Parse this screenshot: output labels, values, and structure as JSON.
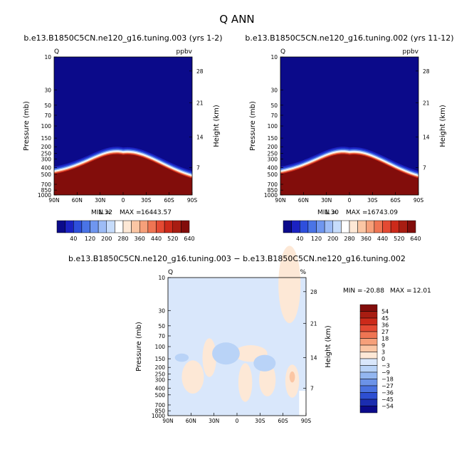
{
  "figure": {
    "title": "Q ANN"
  },
  "colors": {
    "cbar_top": [
      "#0b0a8a",
      "#1b22c2",
      "#2e4fdc",
      "#4a74e6",
      "#6f96ef",
      "#9dbcf6",
      "#c6dcfb",
      "#ffffff",
      "#fde8d6",
      "#fbc6a4",
      "#f6a07a",
      "#ef7553",
      "#e44a33",
      "#cc2a1a",
      "#a81d12",
      "#820d0b"
    ],
    "cbar_diff": [
      "#820d0b",
      "#a81d12",
      "#cc2a1a",
      "#e44a33",
      "#ef7553",
      "#f6a07a",
      "#fbc6a4",
      "#fde8d6",
      "#d9e7fb",
      "#b9d3f7",
      "#93b6f0",
      "#6c93e8",
      "#4a72e0",
      "#2e4fd2",
      "#1b2db0",
      "#0b0a8a"
    ]
  },
  "chart_data": [
    {
      "type": "heatmap",
      "title": "b.e13.B1850C5CN.ne120_g16.tuning.003 (yrs 1-2)",
      "corner_left": "Q",
      "corner_right": "ppbv",
      "ylabel": "Pressure (mb)",
      "ylabel_right": "Height (km)",
      "x_ticks": [
        "90N",
        "60N",
        "30N",
        "0",
        "30S",
        "60S",
        "90S"
      ],
      "y_ticks": [
        "10",
        "30",
        "50",
        "70",
        "100",
        "150",
        "200",
        "250",
        "300",
        "400",
        "500",
        "700",
        "850",
        "1000"
      ],
      "y_ticks_right": [
        "28",
        "21",
        "14",
        "7"
      ],
      "stats": {
        "min_label": "MIN =",
        "min": "1.32",
        "max_label": "MAX =",
        "max": "16443.57"
      },
      "colorbar_labels": [
        "40",
        "120",
        "200",
        "280",
        "360",
        "440",
        "520",
        "640"
      ]
    },
    {
      "type": "heatmap",
      "title": "b.e13.B1850C5CN.ne120_g16.tuning.002 (yrs 11-12)",
      "corner_left": "Q",
      "corner_right": "ppbv",
      "ylabel": "Pressure (mb)",
      "ylabel_right": "Height (km)",
      "x_ticks": [
        "90N",
        "60N",
        "30N",
        "0",
        "30S",
        "60S",
        "90S"
      ],
      "y_ticks": [
        "10",
        "30",
        "50",
        "70",
        "100",
        "150",
        "200",
        "250",
        "300",
        "400",
        "500",
        "700",
        "850",
        "1000"
      ],
      "y_ticks_right": [
        "28",
        "21",
        "14",
        "7"
      ],
      "stats": {
        "min_label": "MIN =",
        "min": "1.30",
        "max_label": "MAX =",
        "max": "16743.09"
      },
      "colorbar_labels": [
        "40",
        "120",
        "200",
        "280",
        "360",
        "440",
        "520",
        "640"
      ]
    },
    {
      "type": "heatmap",
      "title": "b.e13.B1850C5CN.ne120_g16.tuning.003 − b.e13.B1850C5CN.ne120_g16.tuning.002",
      "corner_left": "Q",
      "corner_right": "%",
      "ylabel": "Pressure (mb)",
      "ylabel_right": "Height (km)",
      "x_ticks": [
        "90N",
        "60N",
        "30N",
        "0",
        "30S",
        "60S",
        "90S"
      ],
      "y_ticks": [
        "10",
        "30",
        "50",
        "70",
        "100",
        "150",
        "200",
        "250",
        "300",
        "400",
        "500",
        "700",
        "850",
        "1000"
      ],
      "y_ticks_right": [
        "28",
        "21",
        "14",
        "7"
      ],
      "stats": {
        "min_label": "MIN =",
        "min": "-20.88",
        "max_label": "MAX =",
        "max": "12.01"
      },
      "colorbar_labels": [
        "54",
        "45",
        "36",
        "27",
        "18",
        "9",
        "3",
        "0",
        "−3",
        "−9",
        "−18",
        "−27",
        "−36",
        "−45",
        "−54"
      ]
    }
  ]
}
